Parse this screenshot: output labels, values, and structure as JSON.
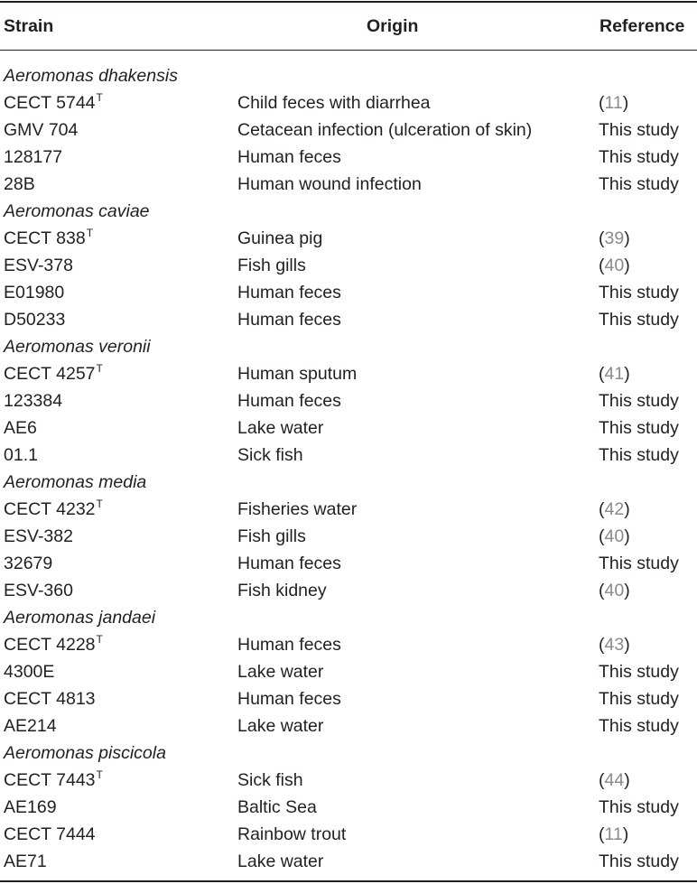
{
  "header": {
    "strain": "Strain",
    "origin": "Origin",
    "reference": "Reference"
  },
  "groups": [
    {
      "species": "Aeromonas dhakensis",
      "rows": [
        {
          "strain": "CECT 5744",
          "sup": "T",
          "origin": "Child feces with diarrhea",
          "reference": "11",
          "cited": true
        },
        {
          "strain": "GMV 704",
          "sup": "",
          "origin": "Cetacean infection (ulceration of skin)",
          "reference": "This study",
          "cited": false
        },
        {
          "strain": "128177",
          "sup": "",
          "origin": "Human feces",
          "reference": "This study",
          "cited": false
        },
        {
          "strain": "28B",
          "sup": "",
          "origin": "Human wound infection",
          "reference": "This study",
          "cited": false
        }
      ]
    },
    {
      "species": "Aeromonas caviae",
      "rows": [
        {
          "strain": "CECT 838",
          "sup": "T",
          "origin": "Guinea pig",
          "reference": "39",
          "cited": true
        },
        {
          "strain": "ESV-378",
          "sup": "",
          "origin": "Fish gills",
          "reference": "40",
          "cited": true
        },
        {
          "strain": "E01980",
          "sup": "",
          "origin": "Human feces",
          "reference": "This study",
          "cited": false
        },
        {
          "strain": "D50233",
          "sup": "",
          "origin": "Human feces",
          "reference": "This study",
          "cited": false
        }
      ]
    },
    {
      "species": "Aeromonas veronii",
      "rows": [
        {
          "strain": "CECT 4257",
          "sup": "T",
          "origin": "Human sputum",
          "reference": "41",
          "cited": true
        },
        {
          "strain": "123384",
          "sup": "",
          "origin": "Human feces",
          "reference": "This study",
          "cited": false
        },
        {
          "strain": "AE6",
          "sup": "",
          "origin": "Lake water",
          "reference": "This study",
          "cited": false
        },
        {
          "strain": "01.1",
          "sup": "",
          "origin": "Sick fish",
          "reference": "This study",
          "cited": false
        }
      ]
    },
    {
      "species": "Aeromonas media",
      "rows": [
        {
          "strain": "CECT 4232",
          "sup": "T",
          "origin": "Fisheries water",
          "reference": "42",
          "cited": true
        },
        {
          "strain": "ESV-382",
          "sup": "",
          "origin": "Fish gills",
          "reference": "40",
          "cited": true
        },
        {
          "strain": "32679",
          "sup": "",
          "origin": "Human feces",
          "reference": "This study",
          "cited": false
        },
        {
          "strain": "ESV-360",
          "sup": "",
          "origin": "Fish kidney",
          "reference": "40",
          "cited": true
        }
      ]
    },
    {
      "species": "Aeromonas jandaei",
      "rows": [
        {
          "strain": "CECT 4228",
          "sup": "T",
          "origin": "Human feces",
          "reference": "43",
          "cited": true
        },
        {
          "strain": "4300E",
          "sup": "",
          "origin": "Lake water",
          "reference": "This study",
          "cited": false
        },
        {
          "strain": "CECT 4813",
          "sup": "",
          "origin": "Human feces",
          "reference": "This study",
          "cited": false
        },
        {
          "strain": "AE214",
          "sup": "",
          "origin": "Lake water",
          "reference": "This study",
          "cited": false
        }
      ]
    },
    {
      "species": "Aeromonas piscicola",
      "rows": [
        {
          "strain": "CECT 7443",
          "sup": "T",
          "origin": "Sick fish",
          "reference": "44",
          "cited": true
        },
        {
          "strain": "AE169",
          "sup": "",
          "origin": "Baltic Sea",
          "reference": "This study",
          "cited": false
        },
        {
          "strain": "CECT 7444",
          "sup": "",
          "origin": "Rainbow trout",
          "reference": "11",
          "cited": true
        },
        {
          "strain": "AE71",
          "sup": "",
          "origin": "Lake water",
          "reference": "This study",
          "cited": false
        }
      ]
    }
  ]
}
